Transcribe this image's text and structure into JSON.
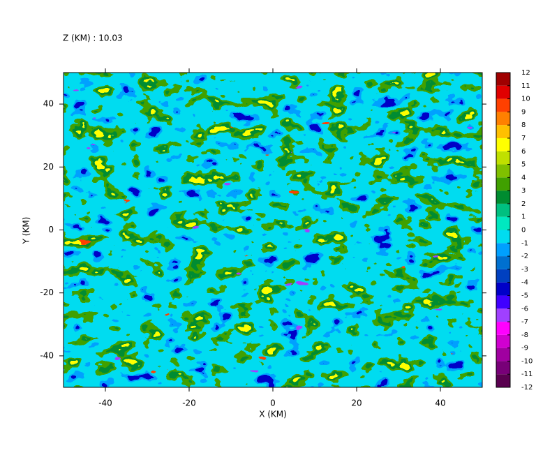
{
  "chart_data": {
    "type": "heatmap",
    "title": "Z (KM) : 10.03",
    "x_label": "X (KM)",
    "y_label": "Y (KM)",
    "xlim": [
      -50,
      50
    ],
    "xticks": [
      -40,
      -20,
      0,
      20,
      40
    ],
    "ylim": [
      -50,
      50
    ],
    "yticks": [
      -40,
      -20,
      0,
      20,
      40
    ],
    "colorbar": {
      "levels": [
        -12,
        -11,
        -10,
        -9,
        -8,
        -7,
        -6,
        -5,
        -4,
        -3,
        -2,
        -1,
        0,
        1,
        2,
        3,
        4,
        5,
        6,
        7,
        8,
        9,
        10,
        11,
        12
      ],
      "colors": [
        "#5a0050",
        "#780078",
        "#a000a0",
        "#d000d0",
        "#ff00ff",
        "#a040ff",
        "#4000ff",
        "#0000c8",
        "#0040c0",
        "#0070d0",
        "#00a0ff",
        "#00dcf0",
        "#00e8c0",
        "#00c080",
        "#008c30",
        "#40a000",
        "#80c000",
        "#c0e000",
        "#ffff00",
        "#ffc000",
        "#ff8000",
        "#ff4000",
        "#e00000",
        "#a00000"
      ]
    }
  }
}
